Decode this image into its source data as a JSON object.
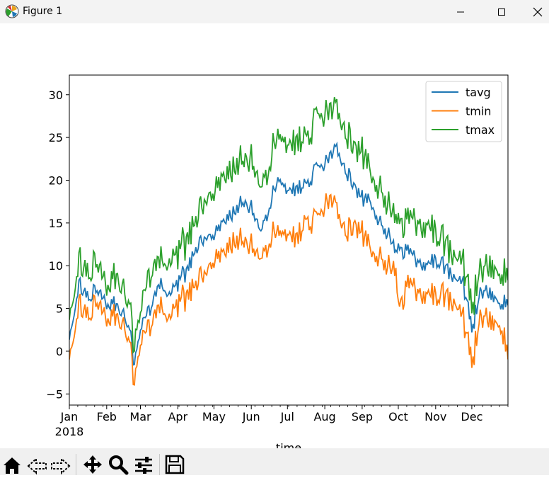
{
  "window": {
    "title": "Figure 1",
    "icon": "matplotlib-icon",
    "controls": [
      "minimize-icon",
      "maximize-icon",
      "close-icon"
    ]
  },
  "toolbar": {
    "tools": [
      "home-icon",
      "back-arrow-icon",
      "forward-arrow-icon",
      "pan-move-icon",
      "zoom-magnifier-icon",
      "configure-subplots-icon",
      "save-floppy-icon"
    ]
  },
  "chart_data": {
    "type": "line",
    "title": "",
    "xlabel": "time",
    "ylabel": "",
    "x_start": "2018-01-01",
    "x_end": "2018-12-31",
    "x_unit": "day of year",
    "xlim": [
      0,
      364
    ],
    "ylim": [
      -6.3,
      32.3
    ],
    "grid": false,
    "legend_position": "upper right",
    "x_ticks": [
      {
        "day": 0,
        "label": "Jan"
      },
      {
        "day": 31,
        "label": "Feb"
      },
      {
        "day": 59,
        "label": "Mar"
      },
      {
        "day": 90,
        "label": "Apr"
      },
      {
        "day": 120,
        "label": "May"
      },
      {
        "day": 151,
        "label": "Jun"
      },
      {
        "day": 181,
        "label": "Jul"
      },
      {
        "day": 212,
        "label": "Aug"
      },
      {
        "day": 243,
        "label": "Sep"
      },
      {
        "day": 273,
        "label": "Oct"
      },
      {
        "day": 304,
        "label": "Nov"
      },
      {
        "day": 334,
        "label": "Dec"
      }
    ],
    "x_year_label": "2018",
    "y_ticks": [
      {
        "value": -5,
        "label": "−5"
      },
      {
        "value": 0,
        "label": "0"
      },
      {
        "value": 5,
        "label": "5"
      },
      {
        "value": 10,
        "label": "10"
      },
      {
        "value": 15,
        "label": "15"
      },
      {
        "value": 20,
        "label": "20"
      },
      {
        "value": 25,
        "label": "25"
      },
      {
        "value": 30,
        "label": "30"
      }
    ],
    "series_x": [
      0,
      8,
      16,
      24,
      31,
      39,
      47,
      51,
      53,
      55,
      59,
      67,
      75,
      83,
      90,
      98,
      105,
      113,
      120,
      128,
      136,
      144,
      151,
      159,
      166,
      174,
      181,
      189,
      197,
      205,
      212,
      218,
      222,
      230,
      237,
      243,
      250,
      258,
      266,
      271,
      273,
      281,
      289,
      297,
      304,
      312,
      320,
      327,
      334,
      342,
      350,
      358,
      364
    ],
    "series": [
      {
        "name": "tavg",
        "color": "#1f77b4",
        "values": [
          1.8,
          7.5,
          6.5,
          7.0,
          6.0,
          5.0,
          3.5,
          2.0,
          -1.0,
          -0.5,
          3.0,
          5.0,
          8.0,
          7.0,
          8.0,
          9.5,
          12.0,
          13.5,
          13.5,
          15.5,
          16.0,
          17.5,
          16.5,
          14.5,
          17.0,
          20.5,
          19.0,
          19.5,
          19.0,
          21.5,
          21.5,
          23.0,
          24.0,
          21.0,
          19.0,
          18.0,
          17.5,
          15.0,
          13.5,
          11.0,
          12.0,
          11.5,
          10.5,
          10.0,
          11.0,
          9.5,
          8.5,
          8.0,
          2.5,
          7.0,
          7.0,
          5.5,
          6.0
        ]
      },
      {
        "name": "tmin",
        "color": "#ff7f0e",
        "values": [
          -0.3,
          5.0,
          4.5,
          5.5,
          4.5,
          3.5,
          2.0,
          0.5,
          -3.0,
          -2.5,
          1.5,
          3.0,
          5.5,
          4.5,
          5.5,
          6.5,
          8.0,
          9.5,
          10.5,
          12.0,
          12.5,
          13.0,
          12.0,
          11.5,
          13.0,
          14.5,
          14.0,
          14.0,
          14.5,
          15.5,
          16.5,
          17.5,
          17.0,
          14.0,
          14.5,
          14.0,
          12.0,
          11.0,
          10.0,
          8.5,
          5.0,
          7.5,
          7.0,
          6.5,
          7.0,
          6.0,
          5.5,
          4.0,
          -1.5,
          4.0,
          4.0,
          3.0,
          0.0
        ]
      },
      {
        "name": "tmax",
        "color": "#2ca02c",
        "values": [
          4.5,
          10.0,
          9.5,
          10.0,
          8.5,
          8.0,
          6.0,
          5.0,
          1.0,
          2.0,
          5.5,
          9.0,
          11.0,
          11.0,
          11.5,
          13.0,
          15.5,
          18.0,
          18.5,
          21.0,
          21.0,
          22.5,
          22.0,
          20.0,
          22.0,
          26.0,
          24.5,
          25.5,
          24.0,
          27.5,
          27.0,
          28.0,
          29.0,
          25.5,
          23.5,
          23.5,
          21.0,
          19.0,
          17.0,
          14.5,
          15.0,
          15.0,
          15.0,
          14.5,
          14.5,
          12.0,
          11.0,
          10.5,
          5.0,
          9.5,
          10.5,
          9.0,
          9.5
        ]
      }
    ]
  }
}
